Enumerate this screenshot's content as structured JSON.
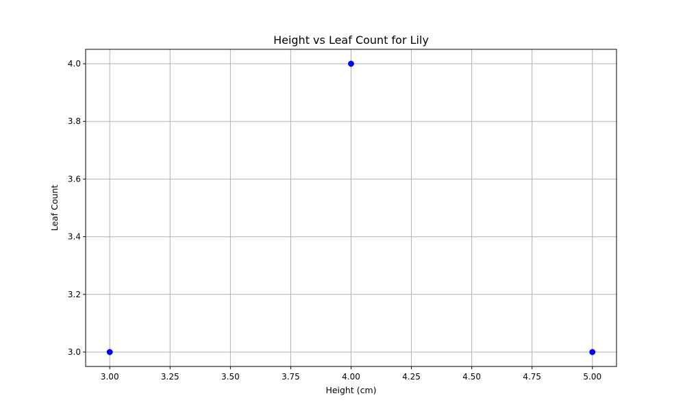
{
  "chart_data": {
    "type": "scatter",
    "title": "Height vs Leaf Count for Lily",
    "xlabel": "Height (cm)",
    "ylabel": "Leaf Count",
    "xlim": [
      2.9,
      5.1
    ],
    "ylim": [
      2.95,
      4.05
    ],
    "xticks": [
      3.0,
      3.25,
      3.5,
      3.75,
      4.0,
      4.25,
      4.5,
      4.75,
      5.0
    ],
    "xtick_labels": [
      "3.00",
      "3.25",
      "3.50",
      "3.75",
      "4.00",
      "4.25",
      "4.50",
      "4.75",
      "5.00"
    ],
    "yticks": [
      3.0,
      3.2,
      3.4,
      3.6,
      3.8,
      4.0
    ],
    "ytick_labels": [
      "3.0",
      "3.2",
      "3.4",
      "3.6",
      "3.8",
      "4.0"
    ],
    "grid": true,
    "series": [
      {
        "points": [
          {
            "x": 3,
            "y": 3
          },
          {
            "x": 4,
            "y": 4
          },
          {
            "x": 5,
            "y": 3
          }
        ]
      }
    ],
    "colors": {
      "marker": "#0000ff"
    }
  }
}
